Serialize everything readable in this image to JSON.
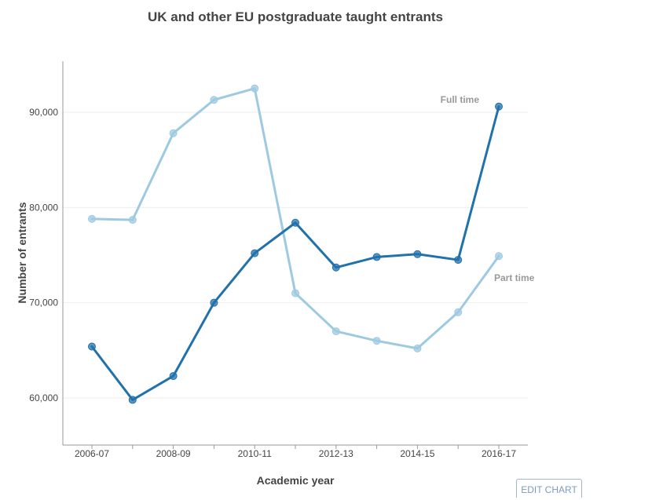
{
  "chart_data": {
    "type": "line",
    "title": "UK and other EU postgraduate taught entrants",
    "xlabel": "Academic year",
    "ylabel": "Number of entrants",
    "x": [
      "2006-07",
      "2007-08",
      "2008-09",
      "2009-10",
      "2010-11",
      "2011-12",
      "2012-13",
      "2013-14",
      "2014-15",
      "2015-16",
      "2016-17"
    ],
    "x_tick_labels": [
      "2006-07",
      "2008-09",
      "2010-11",
      "2012-13",
      "2014-15",
      "2016-17"
    ],
    "y_ticks": [
      60000,
      70000,
      80000,
      90000
    ],
    "y_tick_labels": [
      "60,000",
      "70,000",
      "80,000",
      "90,000"
    ],
    "ylim": [
      55000,
      96000
    ],
    "grid": true,
    "series": [
      {
        "name": "Full time",
        "color": "#2171ab",
        "values": [
          65400,
          59800,
          62300,
          70000,
          75200,
          78400,
          73700,
          74800,
          75100,
          74500,
          90600
        ]
      },
      {
        "name": "Part time",
        "color": "#9ecae1",
        "values": [
          78800,
          78700,
          87800,
          91300,
          92500,
          71000,
          67000,
          66000,
          65200,
          69000,
          74900
        ]
      }
    ]
  },
  "controls": {
    "edit_chart_label": "EDIT CHART"
  }
}
